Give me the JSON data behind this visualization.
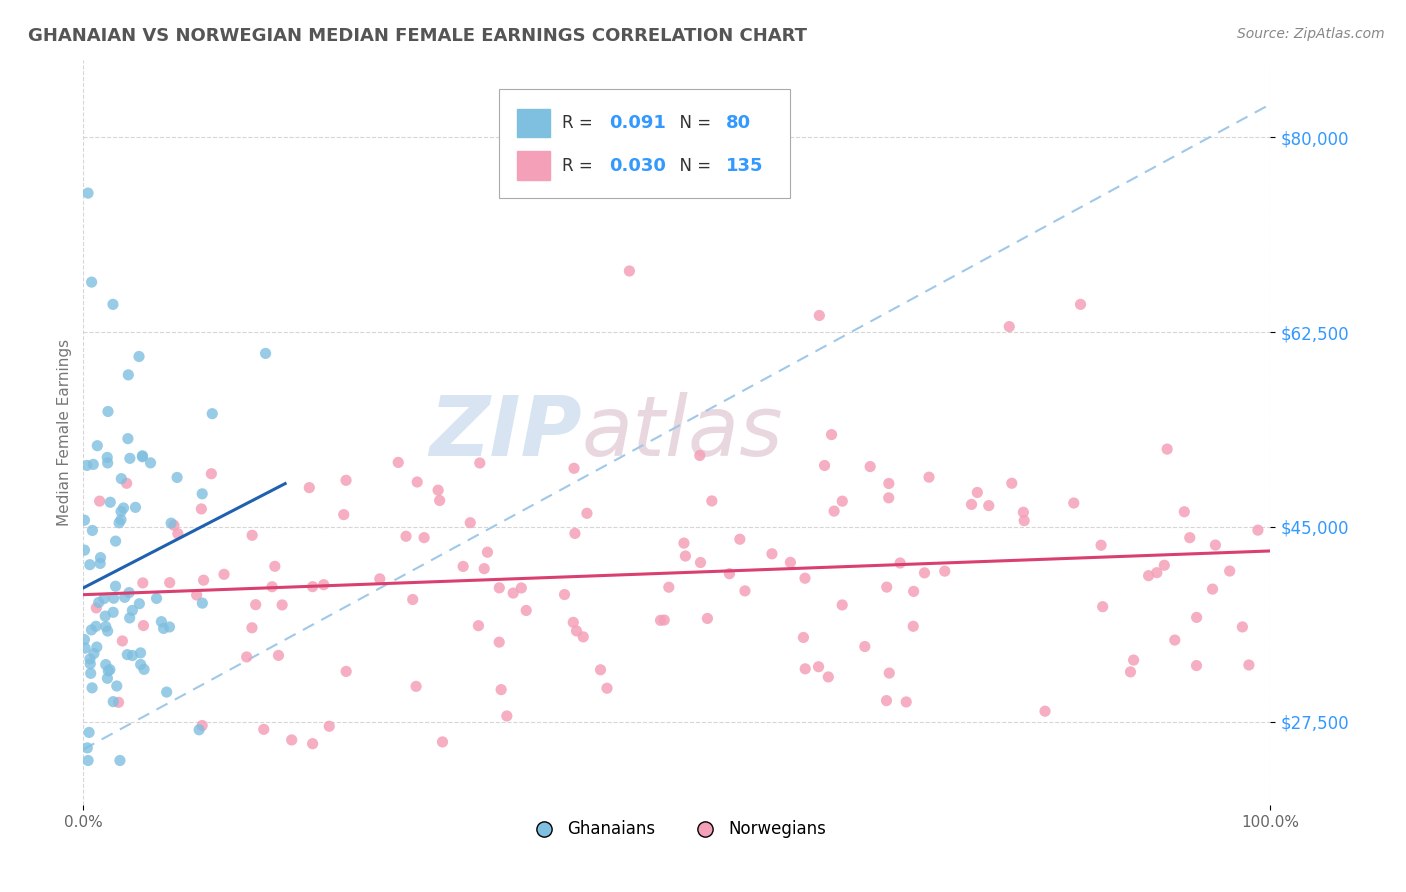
{
  "title": "GHANAIAN VS NORWEGIAN MEDIAN FEMALE EARNINGS CORRELATION CHART",
  "source": "Source: ZipAtlas.com",
  "ylabel": "Median Female Earnings",
  "xlim": [
    0.0,
    1.0
  ],
  "ylim": [
    20000,
    87000
  ],
  "yticks": [
    27500,
    45000,
    62500,
    80000
  ],
  "ytick_labels": [
    "$27,500",
    "$45,000",
    "$62,500",
    "$80,000"
  ],
  "ghanaian_color": "#7fbfdf",
  "norwegian_color": "#f4a0b8",
  "ghanaian_R": 0.091,
  "ghanaian_N": 80,
  "norwegian_R": 0.03,
  "norwegian_N": 135,
  "watermark_zip": "ZIP",
  "watermark_atlas": "atlas",
  "background_color": "#ffffff",
  "grid_color": "#cccccc",
  "title_color": "#555555",
  "reg_blue_color": "#2060b0",
  "reg_pink_color": "#d94070",
  "dashed_line_color": "#a0c8e8",
  "legend_text_dark": "#333333",
  "legend_text_blue": "#3399ff",
  "ytick_color": "#3399ff",
  "source_color": "#888888"
}
